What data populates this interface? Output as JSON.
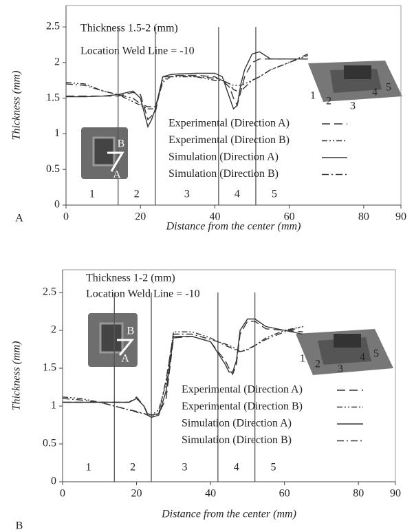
{
  "chart_data": [
    {
      "type": "line",
      "panel_label": "A",
      "xlabel": "Distance from the center (mm)",
      "ylabel": "Thickness (mm)",
      "annotations": [
        "Thickness 1.5-2 (mm)",
        "Location Weld Line = -10"
      ],
      "region_labels": [
        "1",
        "2",
        "3",
        "4",
        "5"
      ],
      "region_bounds": [
        14,
        24,
        41,
        51
      ],
      "inset_numbers": [
        "1",
        "2",
        "3",
        "4",
        "5"
      ],
      "inset_arrows": [
        "B",
        "A"
      ],
      "xlim": [
        0,
        90
      ],
      "xticks": [
        0,
        20,
        40,
        60,
        80,
        90
      ],
      "ylim": [
        0,
        2.8
      ],
      "yticks": [
        0,
        0.5,
        1,
        1.5,
        2,
        2.5
      ],
      "x": [
        0,
        5,
        10,
        14,
        18,
        20,
        22,
        23,
        24,
        26,
        28,
        30,
        35,
        40,
        42,
        44,
        45,
        46,
        47,
        48,
        50,
        52,
        55,
        60,
        65
      ],
      "series": [
        {
          "name": "Experimental (Direction A)",
          "color": "#333333",
          "dash": "12,6",
          "values": [
            1.53,
            1.53,
            1.53,
            1.53,
            1.58,
            1.55,
            1.2,
            1.25,
            1.3,
            1.8,
            1.8,
            1.82,
            1.82,
            1.8,
            1.75,
            1.65,
            1.5,
            1.4,
            1.6,
            1.8,
            2.0,
            2.05,
            2.05,
            2.05,
            2.05
          ]
        },
        {
          "name": "Experimental (Direction B)",
          "color": "#333333",
          "dash": "8,3,2,3,2,3",
          "values": [
            1.72,
            1.7,
            1.6,
            1.55,
            1.45,
            1.4,
            1.35,
            1.35,
            1.35,
            1.75,
            1.8,
            1.8,
            1.8,
            1.75,
            1.75,
            1.7,
            1.68,
            1.68,
            1.68,
            1.7,
            1.75,
            1.8,
            1.9,
            2.0,
            2.1
          ]
        },
        {
          "name": "Simulation (Direction A)",
          "color": "#333333",
          "dash": "none",
          "values": [
            1.52,
            1.52,
            1.53,
            1.55,
            1.6,
            1.5,
            1.1,
            1.2,
            1.35,
            1.8,
            1.83,
            1.84,
            1.85,
            1.85,
            1.8,
            1.5,
            1.35,
            1.4,
            1.7,
            1.9,
            2.12,
            2.15,
            2.05,
            2.05,
            2.05
          ]
        },
        {
          "name": "Simulation (Direction B)",
          "color": "#333333",
          "dash": "10,4,2,4",
          "values": [
            1.7,
            1.68,
            1.6,
            1.55,
            1.5,
            1.42,
            1.38,
            1.38,
            1.38,
            1.72,
            1.8,
            1.82,
            1.8,
            1.78,
            1.75,
            1.7,
            1.62,
            1.6,
            1.6,
            1.65,
            1.75,
            1.8,
            1.9,
            2.0,
            2.12
          ]
        }
      ]
    },
    {
      "type": "line",
      "panel_label": "B",
      "xlabel": "Distance from the center (mm)",
      "ylabel": "Thickness (mm)",
      "annotations": [
        "Thickness 1-2 (mm)",
        "Location Weld Line = -10"
      ],
      "region_labels": [
        "1",
        "2",
        "3",
        "4",
        "5"
      ],
      "region_bounds": [
        14,
        24,
        42,
        52
      ],
      "inset_numbers": [
        "1",
        "2",
        "3",
        "4",
        "5"
      ],
      "inset_arrows": [
        "B",
        "A"
      ],
      "xlim": [
        0,
        90
      ],
      "xticks": [
        0,
        20,
        40,
        60,
        80,
        90
      ],
      "ylim": [
        0,
        2.8
      ],
      "yticks": [
        0,
        0.5,
        1,
        1.5,
        2,
        2.5
      ],
      "x": [
        0,
        5,
        10,
        14,
        18,
        20,
        22,
        23,
        24,
        26,
        28,
        30,
        35,
        40,
        42,
        44,
        45,
        46,
        47,
        48,
        50,
        52,
        55,
        60,
        65
      ],
      "series": [
        {
          "name": "Experimental (Direction A)",
          "color": "#333333",
          "dash": "12,6",
          "values": [
            1.05,
            1.05,
            1.05,
            1.05,
            1.05,
            1.12,
            1.0,
            0.9,
            0.88,
            0.9,
            1.1,
            1.9,
            1.92,
            1.85,
            1.72,
            1.6,
            1.5,
            1.42,
            1.55,
            1.95,
            2.12,
            2.12,
            2.02,
            2.0,
            1.98
          ]
        },
        {
          "name": "Experimental (Direction B)",
          "color": "#333333",
          "dash": "8,3,2,3,2,3",
          "values": [
            1.12,
            1.1,
            1.05,
            1.0,
            0.95,
            0.92,
            0.9,
            0.9,
            0.88,
            0.95,
            1.3,
            1.98,
            1.98,
            1.9,
            1.85,
            1.82,
            1.8,
            1.78,
            1.75,
            1.72,
            1.75,
            1.8,
            1.9,
            2.0,
            2.05
          ]
        },
        {
          "name": "Simulation (Direction A)",
          "color": "#333333",
          "dash": "none",
          "values": [
            1.05,
            1.05,
            1.05,
            1.05,
            1.05,
            1.1,
            1.0,
            0.88,
            0.85,
            0.88,
            1.2,
            1.92,
            1.92,
            1.85,
            1.7,
            1.55,
            1.45,
            1.45,
            1.6,
            2.0,
            2.15,
            2.15,
            2.05,
            2.0,
            1.95
          ]
        },
        {
          "name": "Simulation (Direction B)",
          "color": "#333333",
          "dash": "10,4,2,4",
          "values": [
            1.1,
            1.08,
            1.05,
            1.0,
            0.95,
            0.93,
            0.9,
            0.88,
            0.86,
            0.9,
            1.35,
            1.95,
            1.95,
            1.88,
            1.85,
            1.8,
            1.78,
            1.76,
            1.74,
            1.72,
            1.74,
            1.8,
            1.88,
            1.98,
            2.05
          ]
        }
      ]
    }
  ]
}
